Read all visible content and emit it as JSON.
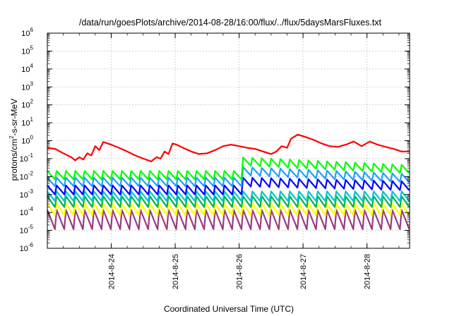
{
  "chart_data": {
    "type": "line",
    "title": "/data/run/goesPlots/archive/2014-08-28/16:00/flux/../flux/5daysMarsFluxes.txt",
    "xlabel": "Coordinated Universal Time (UTC)",
    "ylabel_base": "protons/cm",
    "ylabel_sup": "2",
    "ylabel_rest": "-s-sr-MeV",
    "yscale": "log",
    "ylim": [
      1e-06,
      1000000.0
    ],
    "xlim": [
      "2014-08-23 00:00",
      "2014-08-28 16:00"
    ],
    "grid": true,
    "x_ticks": [
      "2014-8-24",
      "2014-8-25",
      "2014-8-26",
      "2014-8-27",
      "2014-8-28"
    ],
    "y_ticks": [
      {
        "base": "10",
        "exp": "-6"
      },
      {
        "base": "10",
        "exp": "-5"
      },
      {
        "base": "10",
        "exp": "-4"
      },
      {
        "base": "10",
        "exp": "-3"
      },
      {
        "base": "10",
        "exp": "-2"
      },
      {
        "base": "10",
        "exp": "-1"
      },
      {
        "base": "10",
        "exp": "0"
      },
      {
        "base": "10",
        "exp": "1"
      },
      {
        "base": "10",
        "exp": "2"
      },
      {
        "base": "10",
        "exp": "3"
      },
      {
        "base": "10",
        "exp": "4"
      },
      {
        "base": "10",
        "exp": "5"
      },
      {
        "base": "10",
        "exp": "6"
      }
    ],
    "series": [
      {
        "color": "#ff0000",
        "x": [
          "2014-08-23 00:00",
          "2014-08-23 03:00",
          "2014-08-23 06:00",
          "2014-08-23 09:00",
          "2014-08-23 10:30",
          "2014-08-23 12:00",
          "2014-08-23 13:30",
          "2014-08-23 15:00",
          "2014-08-23 16:30",
          "2014-08-23 18:00",
          "2014-08-23 19:30",
          "2014-08-23 21:00",
          "2014-08-24 00:00",
          "2014-08-24 03:00",
          "2014-08-24 06:00",
          "2014-08-24 09:00",
          "2014-08-24 12:00",
          "2014-08-24 15:00",
          "2014-08-24 17:00",
          "2014-08-24 18:30",
          "2014-08-24 20:00",
          "2014-08-24 21:30",
          "2014-08-24 23:00",
          "2014-08-25 00:30",
          "2014-08-25 03:00",
          "2014-08-25 06:00",
          "2014-08-25 09:00",
          "2014-08-25 12:00",
          "2014-08-25 15:00",
          "2014-08-25 18:00",
          "2014-08-25 21:00",
          "2014-08-26 00:00",
          "2014-08-26 03:00",
          "2014-08-26 06:00",
          "2014-08-26 09:00",
          "2014-08-26 12:00",
          "2014-08-26 14:00",
          "2014-08-26 16:00",
          "2014-08-26 18:00",
          "2014-08-26 19:30",
          "2014-08-26 22:00",
          "2014-08-27 01:00",
          "2014-08-27 04:00",
          "2014-08-27 07:00",
          "2014-08-27 10:00",
          "2014-08-27 13:00",
          "2014-08-27 16:00",
          "2014-08-27 19:00",
          "2014-08-27 22:00",
          "2014-08-28 01:00",
          "2014-08-28 04:00",
          "2014-08-28 07:00",
          "2014-08-28 10:00",
          "2014-08-28 13:00",
          "2014-08-28 16:00"
        ],
        "y": [
          0.4,
          0.35,
          0.2,
          0.12,
          0.08,
          0.12,
          0.09,
          0.2,
          0.15,
          0.5,
          0.3,
          0.85,
          0.6,
          0.4,
          0.25,
          0.15,
          0.1,
          0.07,
          0.12,
          0.1,
          0.25,
          0.18,
          0.7,
          0.6,
          0.4,
          0.25,
          0.18,
          0.2,
          0.3,
          0.5,
          0.6,
          0.5,
          0.4,
          0.35,
          0.25,
          0.18,
          0.25,
          0.5,
          0.4,
          1.3,
          2.2,
          1.6,
          1.1,
          0.7,
          0.5,
          0.45,
          0.6,
          0.9,
          0.5,
          0.9,
          0.6,
          0.45,
          0.35,
          0.25,
          0.25
        ]
      },
      {
        "color": "#00ff00",
        "base": 0.012,
        "base_after": 0.07,
        "step_at": "2014-08-26 00:00",
        "base_end": 0.025,
        "swing": 3.0
      },
      {
        "color": "#1f9fff",
        "base": 0.005,
        "base_after": 0.02,
        "step_at": "2014-08-26 00:00",
        "base_end": 0.008,
        "swing": 3.0
      },
      {
        "color": "#0000ff",
        "base": 0.0018,
        "base_after": 0.005,
        "step_at": "2014-08-26 00:00",
        "base_end": 0.003,
        "swing": 3.2
      },
      {
        "color": "#00c8c8",
        "base": 0.0008,
        "swing": 3.5
      },
      {
        "color": "#00b050",
        "base": 0.0004,
        "swing": 4.0
      },
      {
        "color": "#ffff00",
        "base": 0.00015,
        "swing": 4.5
      },
      {
        "color": "#9b3a7f",
        "base": 4e-05,
        "swing": 12.0
      }
    ]
  }
}
